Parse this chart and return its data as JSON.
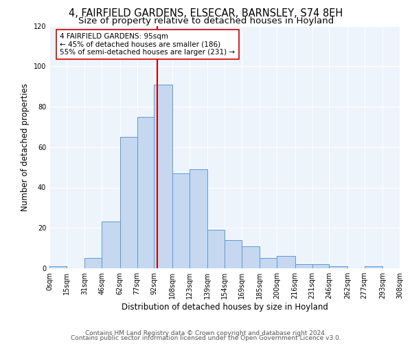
{
  "title": "4, FAIRFIELD GARDENS, ELSECAR, BARNSLEY, S74 8EH",
  "subtitle": "Size of property relative to detached houses in Hoyland",
  "xlabel": "Distribution of detached houses by size in Hoyland",
  "ylabel": "Number of detached properties",
  "bar_edges": [
    0,
    15,
    31,
    46,
    62,
    77,
    92,
    108,
    123,
    139,
    154,
    169,
    185,
    200,
    216,
    231,
    246,
    262,
    277,
    293,
    308
  ],
  "bar_heights": [
    1,
    0,
    5,
    23,
    65,
    75,
    91,
    47,
    49,
    19,
    14,
    11,
    5,
    6,
    2,
    2,
    1,
    0,
    1,
    0
  ],
  "bar_color": "#c5d8f0",
  "bar_edge_color": "#5b9bd5",
  "vline_x": 95,
  "vline_color": "#cc0000",
  "annotation_line1": "4 FAIRFIELD GARDENS: 95sqm",
  "annotation_line2": "← 45% of detached houses are smaller (186)",
  "annotation_line3": "55% of semi-detached houses are larger (231) →",
  "tick_labels": [
    "0sqm",
    "15sqm",
    "31sqm",
    "46sqm",
    "62sqm",
    "77sqm",
    "92sqm",
    "108sqm",
    "123sqm",
    "139sqm",
    "154sqm",
    "169sqm",
    "185sqm",
    "200sqm",
    "216sqm",
    "231sqm",
    "246sqm",
    "262sqm",
    "277sqm",
    "293sqm",
    "308sqm"
  ],
  "ylim": [
    0,
    120
  ],
  "yticks": [
    0,
    20,
    40,
    60,
    80,
    100,
    120
  ],
  "footer1": "Contains HM Land Registry data © Crown copyright and database right 2024.",
  "footer2": "Contains public sector information licensed under the Open Government Licence v3.0.",
  "bg_color": "#eef4fb",
  "title_fontsize": 10.5,
  "subtitle_fontsize": 9.5,
  "axis_label_fontsize": 8.5,
  "tick_fontsize": 7,
  "footer_fontsize": 6.5,
  "annot_fontsize": 7.5
}
